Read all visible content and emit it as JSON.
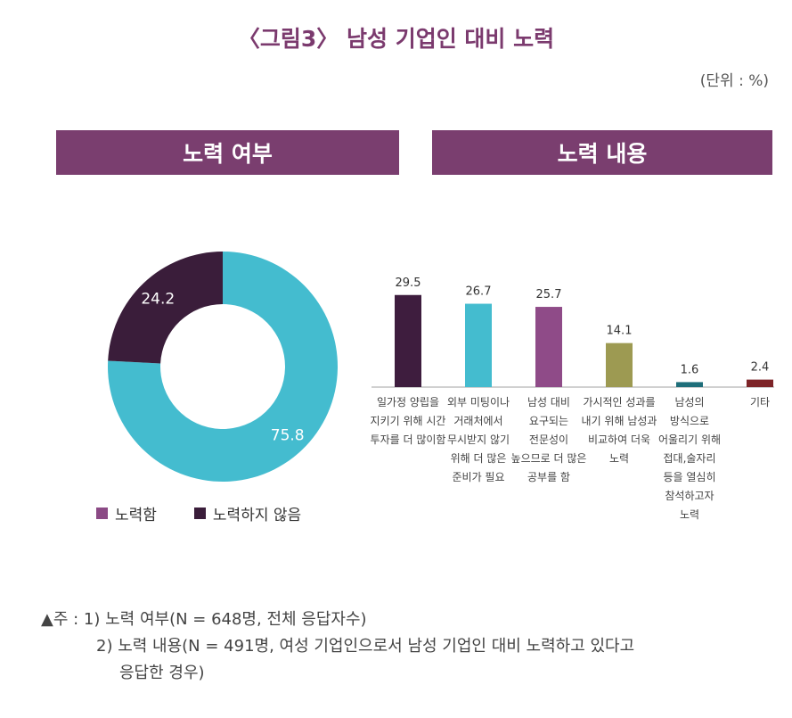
{
  "title": "〈그림3〉 남성 기업인 대비 노력",
  "unit": "(단위 : %)",
  "colors": {
    "title": "#7b3a6e",
    "header_bg": "#7a3e6f",
    "donut_yes": "#44bccf",
    "donut_no": "#3a1d3a",
    "legend_yes": "#8b4a85",
    "legend_no": "#3a1d3a",
    "axis": "#a0a0a0"
  },
  "panels": {
    "left_title": "노력 여부",
    "right_title": "노력 내용"
  },
  "chart_data": [
    {
      "type": "pie",
      "labels": [
        "노력함",
        "노력하지 않음"
      ],
      "values": [
        75.8,
        24.2
      ],
      "data_labels": [
        "75.8",
        "24.2"
      ],
      "colors": [
        "#44bccf",
        "#3a1d3a"
      ],
      "legend": "bottom"
    },
    {
      "type": "bar",
      "categories": [
        "일가정 양립을\n지키기 위해 시간\n투자를 더 많이함",
        "외부 미팅이나\n거래처에서\n무시받지 않기\n위해 더 많은\n준비가 필요",
        "남성 대비\n요구되는\n전문성이\n높으므로 더 많은\n공부를 함",
        "가시적인 성과를\n내기 위해 남성과\n비교하여 더욱\n노력",
        "남성의\n방식으로\n어울리기 위해\n접대,술자리\n등을 열심히\n참석하고자\n노력",
        "기타"
      ],
      "values": [
        29.5,
        26.7,
        25.7,
        14.1,
        1.6,
        2.4
      ],
      "data_labels": [
        "29.5",
        "26.7",
        "25.7",
        "14.1",
        "1.6",
        "2.4"
      ],
      "colors": [
        "#3e1d3e",
        "#44bccf",
        "#8f4b88",
        "#9d9a52",
        "#1e6e7a",
        "#7d2428"
      ],
      "ylim": [
        0,
        32
      ]
    }
  ],
  "notes": {
    "line1": "▲주 : 1) 노력 여부(N = 648명, 전체 응답자수)",
    "line2": "2) 노력 내용(N = 491명, 여성 기업인으로서 남성 기업인 대비 노력하고 있다고",
    "line3": "응답한 경우)"
  }
}
